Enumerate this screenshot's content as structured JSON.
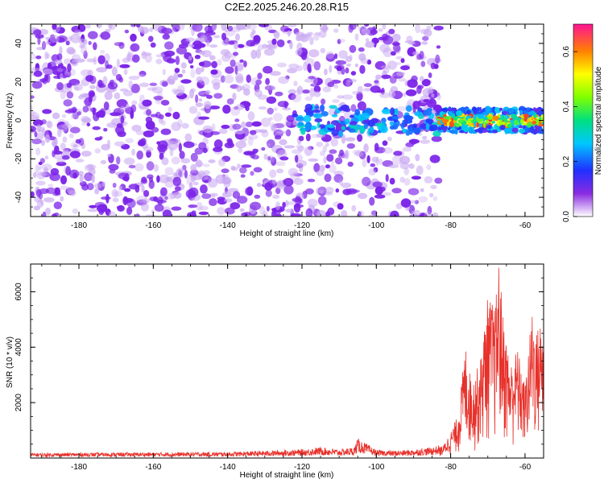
{
  "title": "C2E2.2025.246.20.28.R15",
  "chart_data": [
    {
      "type": "heatmap",
      "xlabel": "Height of straight line (km)",
      "ylabel": "Frequency (Hz)",
      "xlim": [
        -193,
        -55
      ],
      "ylim": [
        -50,
        50
      ],
      "x_ticks": [
        -180,
        -160,
        -140,
        -120,
        -100,
        -80,
        -60
      ],
      "y_ticks": [
        -40,
        -20,
        0,
        20,
        40
      ],
      "colorbar": {
        "label": "Normalized spectral amplitude",
        "range": [
          0.0,
          0.7
        ],
        "ticks": [
          0.0,
          0.2,
          0.4,
          0.6
        ]
      },
      "summary": [
        {
          "x_range": [
            -193,
            -83
          ],
          "freq_range": [
            -50,
            50
          ],
          "level": 0.08
        },
        {
          "x_range": [
            -122,
            -103
          ],
          "freq_range": [
            -8,
            8
          ],
          "level": 0.25
        },
        {
          "x_range": [
            -83,
            -56
          ],
          "freq_range": [
            -6,
            6
          ],
          "level": 0.68
        }
      ]
    },
    {
      "type": "line",
      "xlabel": "Height of straight line (km)",
      "ylabel": "SNR (10 * v/v)",
      "xlim": [
        -193,
        -55
      ],
      "ylim": [
        0,
        7000
      ],
      "x_ticks": [
        -180,
        -160,
        -140,
        -120,
        -100,
        -80,
        -60
      ],
      "y_ticks": [
        2000,
        4000,
        6000
      ],
      "line_color": "#e8302a",
      "series": [
        {
          "x": [
            -193,
            -180,
            -160,
            -140,
            -130,
            -120,
            -115,
            -110,
            -106,
            -105,
            -100,
            -95,
            -90,
            -85,
            -82,
            -80,
            -78,
            -76,
            -75,
            -74,
            -72,
            -70,
            -68,
            -67,
            -66,
            -64,
            -62,
            -60,
            -58,
            -57,
            -56
          ],
          "y": [
            150,
            160,
            170,
            180,
            220,
            260,
            330,
            260,
            320,
            600,
            240,
            220,
            260,
            330,
            420,
            900,
            1500,
            3900,
            3000,
            2700,
            3400,
            5600,
            5200,
            6900,
            5000,
            3200,
            3800,
            2500,
            5200,
            4300,
            4700
          ]
        }
      ]
    }
  ]
}
